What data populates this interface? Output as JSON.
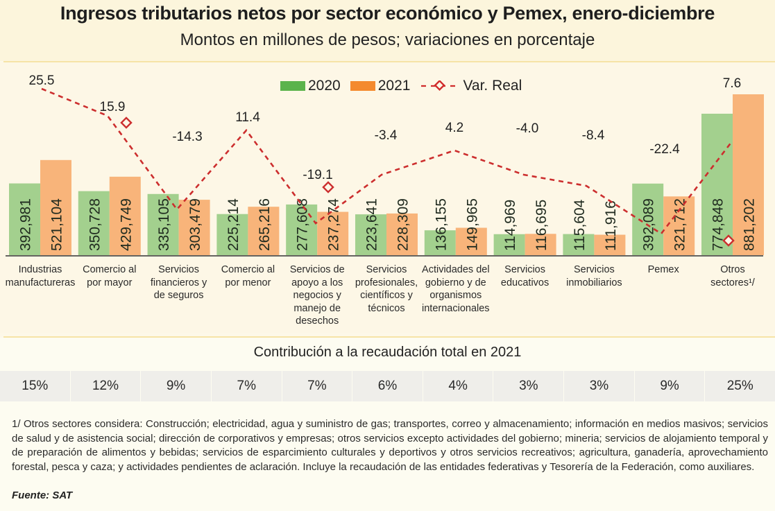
{
  "header": {
    "title": "Ingresos tributarios netos por sector económico y Pemex, enero-diciembre",
    "subtitle": "Montos en millones de pesos; variaciones en porcentaje"
  },
  "legend": {
    "items": [
      {
        "label": "2020",
        "color": "#7fc26b",
        "icon": "green-swatch"
      },
      {
        "label": "2021",
        "color": "#f7a85e",
        "icon": "orange-swatch"
      },
      {
        "label": "Var. Real",
        "color": "#d02b2b",
        "icon": "dashed-line-diamond-marker"
      }
    ]
  },
  "chart_data": {
    "type": "bar",
    "title": "Ingresos tributarios netos por sector económico y Pemex, enero-diciembre",
    "subtitle": "Montos en millones de pesos; variaciones en porcentaje",
    "xlabel": "",
    "ylabel": "",
    "grid": false,
    "legend_position": "top-center",
    "categories": [
      "Industrias manufactureras",
      "Comercio al por mayor",
      "Servicios financieros y de seguros",
      "Comercio al por menor",
      "Servicios de apoyo a los negocios y manejo de desechos",
      "Servicios profesionales, científicos y técnicos",
      "Actividades del gobierno y de organismos internacionales",
      "Servicios educativos",
      "Servicios inmobiliarios",
      "Pemex",
      "Otros sectores¹/"
    ],
    "category_lines": [
      [
        "Industrias",
        "manufactureras"
      ],
      [
        "Comercio al",
        "por mayor"
      ],
      [
        "Servicios",
        "financieros y",
        "de seguros"
      ],
      [
        "Comercio al",
        "por menor"
      ],
      [
        "Servicios de",
        "apoyo a los",
        "negocios y",
        "manejo de",
        "desechos"
      ],
      [
        "Servicios",
        "profesionales,",
        "científicos y",
        "técnicos"
      ],
      [
        "Actividades del",
        "gobierno y de",
        "organismos",
        "internacionales"
      ],
      [
        "Servicios",
        "educativos"
      ],
      [
        "Servicios",
        "inmobiliarios"
      ],
      [
        "Pemex"
      ],
      [
        "Otros",
        "sectores¹/"
      ]
    ],
    "series": [
      {
        "name": "2020",
        "type": "bar",
        "color": "#a3d08e",
        "values": [
          392981,
          350728,
          335105,
          225214,
          277608,
          223641,
          136155,
          114969,
          115604,
          392089,
          774848
        ],
        "labels": [
          "392,981",
          "350,728",
          "335,105",
          "225,214",
          "277,608",
          "223,641",
          "136,155",
          "114,969",
          "115,604",
          "392,089",
          "774,848"
        ]
      },
      {
        "name": "2021",
        "type": "bar",
        "color": "#f8b47a",
        "values": [
          521104,
          429749,
          303479,
          265216,
          237274,
          228309,
          149965,
          116695,
          111916,
          321712,
          881202
        ],
        "labels": [
          "521,104",
          "429,749",
          "303,479",
          "265,216",
          "237,274",
          "228,309",
          "149,965",
          "116,695",
          "111,916",
          "321,712",
          "881,202"
        ]
      },
      {
        "name": "Var. Real",
        "type": "line",
        "color": "#cc2e2e",
        "values": [
          25.5,
          15.9,
          -14.3,
          11.4,
          -19.1,
          -3.4,
          4.2,
          -4.0,
          -8.4,
          -22.4,
          7.6
        ],
        "labels": [
          "25.5",
          "15.9",
          "-14.3",
          "11.4",
          "-19.1",
          "-3.4",
          "4.2",
          "-4.0",
          "-8.4",
          "-22.4",
          "7.6"
        ]
      }
    ],
    "ylim": [
      0,
      900000
    ]
  },
  "contribution": {
    "title": "Contribución a la recaudación total en 2021",
    "values": [
      "15%",
      "12%",
      "9%",
      "7%",
      "7%",
      "6%",
      "4%",
      "3%",
      "3%",
      "9%",
      "25%"
    ]
  },
  "footnote": "1/ Otros sectores considera: Construcción; electricidad, agua y suministro de gas; transportes, correo y almacenamiento; información en medios masivos; servicios de salud y de asistencia social; dirección de corporativos y empresas; otros servicios excepto actividades del gobierno; mineria; servicios de alojamiento temporal y de preparación de alimentos y bebidas; servicios de esparcimiento culturales y deportivos y otros servicios recreativos; agricultura, ganadería, aprovechamiento forestal, pesca y caza; y actividades pendientes de aclaración. Incluye la recaudación de las entidades federativas y Tesorería de la Federación, como auxiliares.",
  "source": "Fuente: SAT"
}
